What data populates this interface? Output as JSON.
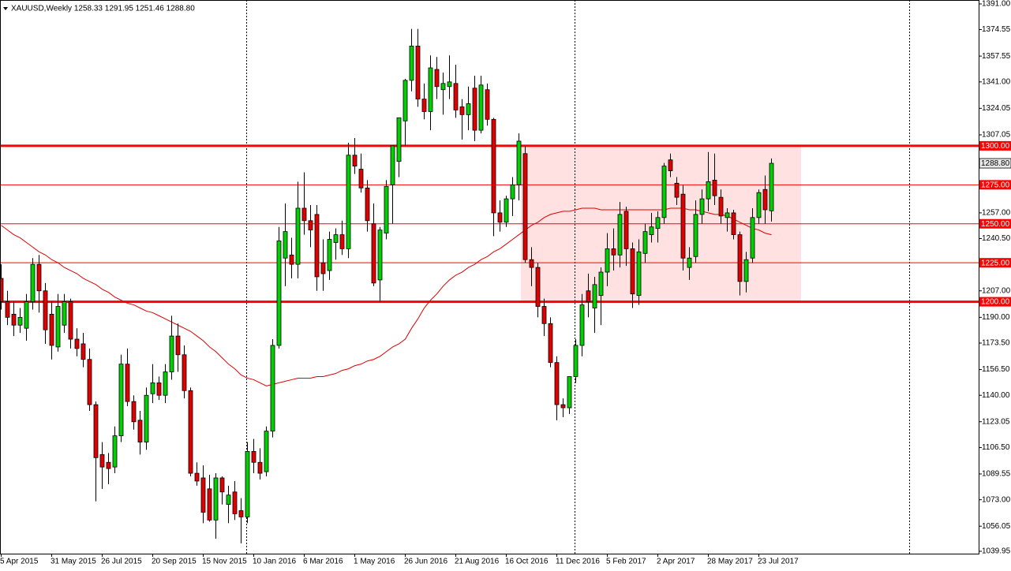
{
  "chart_data": {
    "type": "candlestick",
    "title": "XAUUSD,Weekly  1258.33 1291.95 1251.46 1288.80",
    "categories": [
      "5 Apr 2015",
      null,
      null,
      null,
      null,
      null,
      null,
      null,
      "31 May 2015",
      null,
      null,
      null,
      null,
      null,
      null,
      null,
      "26 Jul 2015",
      null,
      null,
      null,
      null,
      null,
      null,
      null,
      "20 Sep 2015",
      null,
      null,
      null,
      null,
      null,
      null,
      null,
      "15 Nov 2015",
      null,
      null,
      null,
      null,
      null,
      null,
      null,
      "10 Jan 2016",
      null,
      null,
      null,
      null,
      null,
      null,
      null,
      "6 Mar 2016",
      null,
      null,
      null,
      null,
      null,
      null,
      null,
      "1 May 2016",
      null,
      null,
      null,
      null,
      null,
      null,
      null,
      "26 Jun 2016",
      null,
      null,
      null,
      null,
      null,
      null,
      null,
      "21 Aug 2016",
      null,
      null,
      null,
      null,
      null,
      null,
      null,
      "16 Oct 2016",
      null,
      null,
      null,
      null,
      null,
      null,
      null,
      "11 Dec 2016",
      null,
      null,
      null,
      null,
      null,
      null,
      null,
      "5 Feb 2017",
      null,
      null,
      null,
      null,
      null,
      null,
      null,
      "2 Apr 2017",
      null,
      null,
      null,
      null,
      null,
      null,
      null,
      "28 May 2017",
      null,
      null,
      null,
      null,
      null,
      null,
      null,
      "23 Jul 2017",
      null,
      null
    ],
    "candles": {
      "open": [
        1215,
        1200,
        1192,
        1185,
        1183,
        1200,
        1224,
        1207,
        1192,
        1171,
        1185,
        1200,
        1176,
        1173,
        1163,
        1134,
        1102,
        1097,
        1094,
        1114,
        1160,
        1136,
        1124,
        1110,
        1141,
        1148,
        1140,
        1155,
        1178,
        1166,
        1143,
        1090,
        1087,
        1080,
        1060,
        1087,
        1070,
        1078,
        1066,
        1062,
        1104,
        1097,
        1091,
        1117,
        1172,
        1228,
        1230,
        1224,
        1260,
        1252,
        1256,
        1225,
        1220,
        1238,
        1243,
        1234,
        1294,
        1285,
        1273,
        1250,
        1214,
        1244,
        1275,
        1290,
        1316,
        1342,
        1364,
        1330,
        1322,
        1349,
        1336,
        1338,
        1340,
        1325,
        1320,
        1337,
        1310,
        1336,
        1317,
        1257,
        1251,
        1266,
        1275,
        1295,
        1227,
        1222,
        1197,
        1186,
        1161,
        1134,
        1132,
        1152,
        1172,
        1207,
        1196,
        1204,
        1219,
        1234,
        1230,
        1258,
        1234,
        1204,
        1231,
        1243,
        1247,
        1254,
        1291,
        1276,
        1269,
        1222,
        1229,
        1256,
        1266,
        1278,
        1267,
        1254,
        1257,
        1243,
        1213,
        1228,
        1254,
        1272,
        1258.33
      ],
      "high": [
        1224,
        1207,
        1200,
        1196,
        1205,
        1228,
        1230,
        1212,
        1200,
        1205,
        1205,
        1202,
        1183,
        1180,
        1170,
        1136,
        1110,
        1103,
        1120,
        1166,
        1170,
        1140,
        1130,
        1145,
        1160,
        1152,
        1160,
        1191,
        1186,
        1172,
        1145,
        1097,
        1095,
        1089,
        1090,
        1088,
        1082,
        1085,
        1074,
        1110,
        1112,
        1106,
        1120,
        1176,
        1248,
        1263,
        1241,
        1277,
        1283,
        1262,
        1262,
        1240,
        1245,
        1247,
        1252,
        1302,
        1305,
        1295,
        1278,
        1263,
        1248,
        1278,
        1300,
        1318,
        1343,
        1375,
        1375,
        1340,
        1358,
        1357,
        1347,
        1358,
        1352,
        1330,
        1338,
        1345,
        1345,
        1340,
        1318,
        1265,
        1268,
        1280,
        1308,
        1300,
        1235,
        1225,
        1202,
        1190,
        1165,
        1138,
        1143,
        1176,
        1205,
        1218,
        1216,
        1222,
        1244,
        1247,
        1264,
        1261,
        1238,
        1240,
        1250,
        1257,
        1258,
        1289,
        1295,
        1280,
        1275,
        1235,
        1265,
        1272,
        1296,
        1295,
        1272,
        1260,
        1259,
        1245,
        1232,
        1260,
        1272,
        1281,
        1291.95
      ],
      "low": [
        1195,
        1185,
        1178,
        1180,
        1175,
        1195,
        1193,
        1173,
        1163,
        1168,
        1180,
        1170,
        1165,
        1158,
        1130,
        1072,
        1080,
        1083,
        1090,
        1110,
        1133,
        1118,
        1102,
        1105,
        1135,
        1137,
        1135,
        1150,
        1155,
        1138,
        1088,
        1082,
        1058,
        1059,
        1048,
        1070,
        1058,
        1060,
        1045,
        1058,
        1090,
        1086,
        1088,
        1113,
        1170,
        1210,
        1215,
        1215,
        1243,
        1235,
        1207,
        1207,
        1214,
        1227,
        1230,
        1228,
        1282,
        1270,
        1245,
        1210,
        1200,
        1240,
        1250,
        1280,
        1300,
        1335,
        1325,
        1317,
        1310,
        1330,
        1320,
        1330,
        1318,
        1304,
        1310,
        1303,
        1308,
        1313,
        1242,
        1245,
        1248,
        1255,
        1265,
        1225,
        1210,
        1190,
        1178,
        1158,
        1124,
        1126,
        1128,
        1148,
        1165,
        1190,
        1180,
        1185,
        1210,
        1220,
        1222,
        1223,
        1196,
        1198,
        1225,
        1238,
        1238,
        1250,
        1280,
        1262,
        1220,
        1214,
        1225,
        1250,
        1258,
        1262,
        1250,
        1245,
        1240,
        1204,
        1206,
        1225,
        1250,
        1250,
        1251.46
      ],
      "close": [
        1200,
        1190,
        1185,
        1190,
        1200,
        1224,
        1207,
        1182,
        1172,
        1197,
        1200,
        1176,
        1170,
        1163,
        1134,
        1100,
        1094,
        1093,
        1114,
        1160,
        1136,
        1123,
        1110,
        1140,
        1148,
        1140,
        1155,
        1178,
        1166,
        1143,
        1090,
        1085,
        1065,
        1060,
        1087,
        1078,
        1076,
        1064,
        1062,
        1104,
        1097,
        1090,
        1117,
        1172,
        1239,
        1245,
        1224,
        1260,
        1252,
        1246,
        1216,
        1218,
        1240,
        1243,
        1234,
        1294,
        1287,
        1273,
        1252,
        1212,
        1246,
        1274,
        1300,
        1318,
        1342,
        1364,
        1330,
        1322,
        1350,
        1338,
        1340,
        1341,
        1323,
        1320,
        1327,
        1310,
        1339,
        1317,
        1257,
        1251,
        1266,
        1275,
        1303,
        1227,
        1222,
        1197,
        1186,
        1161,
        1134,
        1132,
        1152,
        1172,
        1198,
        1200,
        1211,
        1219,
        1234,
        1230,
        1256,
        1234,
        1205,
        1232,
        1245,
        1248,
        1254,
        1287,
        1284,
        1267,
        1228,
        1228,
        1256,
        1266,
        1277,
        1268,
        1255,
        1257,
        1243,
        1213,
        1227,
        1254,
        1270,
        1259,
        1288.8
      ]
    },
    "moving_average": [
      1249,
      1246,
      1243,
      1241,
      1238,
      1235,
      1232,
      1230,
      1227,
      1225,
      1222,
      1220,
      1218,
      1215,
      1213,
      1211,
      1208,
      1206,
      1203,
      1201,
      1199,
      1198,
      1196,
      1194,
      1193,
      1191,
      1189,
      1187,
      1185,
      1183,
      1181,
      1178,
      1175,
      1171,
      1168,
      1164,
      1160,
      1157,
      1153,
      1151,
      1150,
      1148,
      1146,
      1147,
      1148,
      1149,
      1150,
      1151,
      1151,
      1151,
      1152,
      1152,
      1153,
      1154,
      1156,
      1157,
      1159,
      1160,
      1162,
      1163,
      1165,
      1168,
      1171,
      1173,
      1176,
      1183,
      1189,
      1196,
      1201,
      1205,
      1210,
      1214,
      1217,
      1219,
      1222,
      1224,
      1227,
      1229,
      1232,
      1234,
      1237,
      1240,
      1243,
      1246,
      1249,
      1251,
      1254,
      1256,
      1257,
      1258,
      1258,
      1259,
      1260,
      1260,
      1260,
      1259,
      1259,
      1259,
      1259,
      1259,
      1259,
      1259,
      1259,
      1259,
      1259,
      1259,
      1260,
      1260,
      1260,
      1259,
      1259,
      1258,
      1257,
      1256,
      1256,
      1255,
      1253,
      1251,
      1249,
      1247,
      1246,
      1244,
      1243
    ],
    "levels": [
      {
        "value": 1300,
        "label": "1300.00",
        "style": "thick"
      },
      {
        "value": 1275,
        "label": "1275.00",
        "style": "thin"
      },
      {
        "value": 1250,
        "label": "1250.00",
        "style": "thin"
      },
      {
        "value": 1225,
        "label": "1225.00",
        "style": "thin"
      },
      {
        "value": 1200,
        "label": "1200.00",
        "style": "thick"
      }
    ],
    "last_price": {
      "value": 1288.8,
      "label": "1288.80"
    },
    "ylim": [
      1039.95,
      1391
    ],
    "yticks": [
      {
        "value": 1391,
        "label": "1391.00"
      },
      {
        "value": 1374.55,
        "label": "1374.55"
      },
      {
        "value": 1357.55,
        "label": "1357.55"
      },
      {
        "value": 1341,
        "label": "1341.00"
      },
      {
        "value": 1324.05,
        "label": "1324.05"
      },
      {
        "value": 1307.05,
        "label": "1307.05"
      },
      {
        "value": 1257,
        "label": "1257.00"
      },
      {
        "value": 1240.5,
        "label": "1240.50"
      },
      {
        "value": 1207,
        "label": "1207.00"
      },
      {
        "value": 1190,
        "label": "1190.00"
      },
      {
        "value": 1173.5,
        "label": "1173.50"
      },
      {
        "value": 1156.5,
        "label": "1156.50"
      },
      {
        "value": 1140,
        "label": "1140.00"
      },
      {
        "value": 1123.05,
        "label": "1123.05"
      },
      {
        "value": 1106.5,
        "label": "1106.50"
      },
      {
        "value": 1089.55,
        "label": "1089.55"
      },
      {
        "value": 1073,
        "label": "1073.00"
      },
      {
        "value": 1056.05,
        "label": "1056.05"
      },
      {
        "value": 1039.95,
        "label": "1039.95"
      }
    ],
    "up_color": "#00d000",
    "down_color": "#e00000",
    "ma_color": "#e00000",
    "level_color": "#ff0000",
    "zone_color": "#ffe1e1"
  }
}
